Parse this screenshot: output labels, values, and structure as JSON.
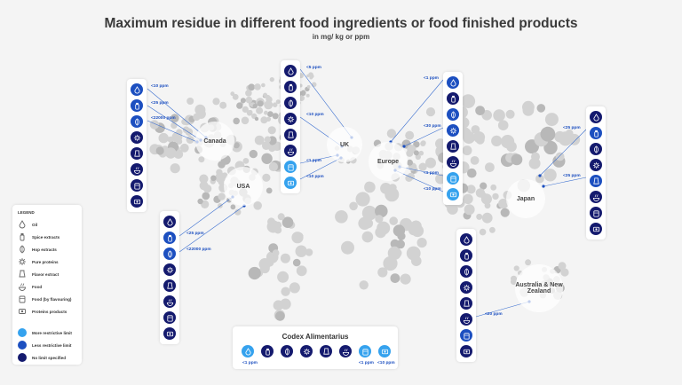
{
  "title": "Maximum residue in different food ingredients or food finished products",
  "subtitle": "in mg/ kg or ppm",
  "countries": {
    "canada": "Canada",
    "usa": "USA",
    "uk": "UK",
    "europe": "Europe",
    "japan": "Japan",
    "anz": "Australia & New Zealand",
    "codex": "Codex Alimentarius"
  },
  "limits": {
    "canada": [
      "<10 ppm",
      "<25 ppm",
      "<22000 ppm"
    ],
    "usa": [
      "<25 ppm",
      "<22000 ppm"
    ],
    "uk": [
      "<5 ppm",
      "<10 ppm",
      "<1 ppm",
      "<10 ppm"
    ],
    "europe": [
      "<1 ppm",
      "<30 ppm",
      "<1 ppm",
      "<10 ppm"
    ],
    "japan": [
      "<25 ppm",
      "<25 ppm"
    ],
    "anz": [
      "<20 ppm"
    ],
    "codex": [
      "<1 ppm",
      "<1 ppm",
      "<10 ppm"
    ]
  },
  "legend": {
    "heading": "LEGEND",
    "items": [
      {
        "label": "Oil",
        "icon": "oil-icon"
      },
      {
        "label": "Spice extracts",
        "icon": "spice-icon"
      },
      {
        "label": "Hop extracts",
        "icon": "hop-icon"
      },
      {
        "label": "Pure proteins",
        "icon": "protein-icon"
      },
      {
        "label": "Flavor extract",
        "icon": "flavor-icon"
      },
      {
        "label": "Food",
        "icon": "food-icon"
      },
      {
        "label": "Food (by flavouring)",
        "icon": "food-flavouring-icon"
      },
      {
        "label": "Proteins products",
        "icon": "protein-products-icon"
      }
    ],
    "limit_items": [
      {
        "label": "More restrictive limit",
        "color": "#35a2ee"
      },
      {
        "label": "Less restrictive limit",
        "color": "#1c4fc0"
      },
      {
        "label": "No limit specified",
        "color": "#141a6e"
      }
    ]
  },
  "colors": {
    "more_restrictive": "#35a2ee",
    "less_restrictive": "#1c4fc0",
    "no_limit": "#141a6e",
    "map_dots": "#cfcfcf"
  }
}
